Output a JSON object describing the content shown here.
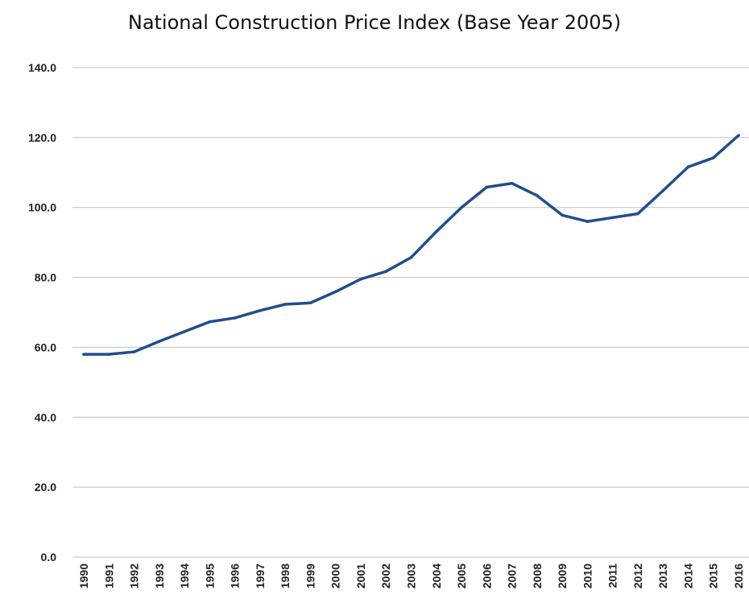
{
  "chart_data": {
    "type": "line",
    "title": "National Construction Price Index (Base Year 2005)",
    "xlabel": "",
    "ylabel": "",
    "ylim": [
      0,
      140
    ],
    "y_ticks": [
      "0.0",
      "20.0",
      "40.0",
      "60.0",
      "80.0",
      "100.0",
      "120.0",
      "140.0"
    ],
    "grid": "horizontal",
    "legend": "none",
    "categories": [
      "1990",
      "1991",
      "1992",
      "1993",
      "1994",
      "1995",
      "1996",
      "1997",
      "1998",
      "1999",
      "2000",
      "2001",
      "2002",
      "2003",
      "2004",
      "2005",
      "2006",
      "2007",
      "2008",
      "2009",
      "2010",
      "2011",
      "2012",
      "2013",
      "2014",
      "2015",
      "2016"
    ],
    "series": [
      {
        "values": [
          58.0,
          58.0,
          58.7,
          61.7,
          64.5,
          67.3,
          68.4,
          70.5,
          72.3,
          72.7,
          75.9,
          79.5,
          81.7,
          85.7,
          93.1,
          100.0,
          105.8,
          106.9,
          103.4,
          97.8,
          96.0,
          97.1,
          98.2,
          104.8,
          111.6,
          114.2,
          120.6
        ],
        "color": "#1f4e8c"
      }
    ],
    "colors": {
      "line": "#1f4e8c",
      "grid": "#bfbfbf",
      "text": "#222222"
    }
  }
}
